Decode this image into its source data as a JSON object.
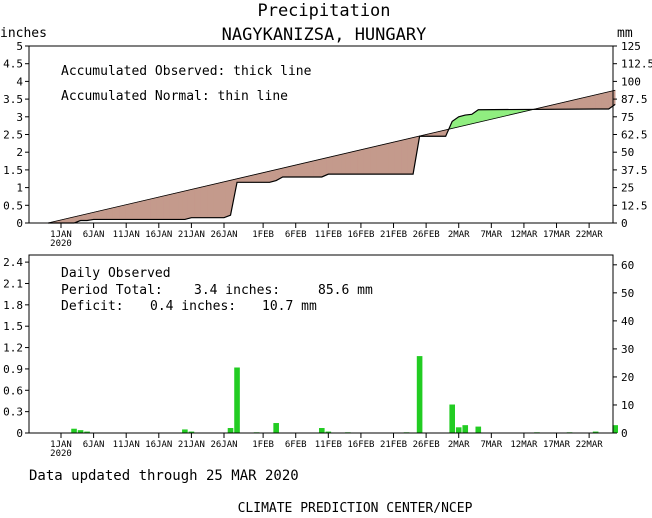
{
  "header": {
    "title": "Precipitation",
    "location": "NAGYKANIZSA, HUNGARY",
    "left_unit": "inches",
    "right_unit": "mm"
  },
  "top_panel": {
    "legend": [
      "Accumulated Observed: thick line",
      "Accumulated Normal: thin line"
    ]
  },
  "bottom_panel": {
    "title": "Daily Observed",
    "period_total_label": "Period Total:",
    "period_total_in": "3.4 inches:",
    "period_total_mm": "85.6 mm",
    "deficit_label": "Deficit:",
    "deficit_in": "0.4 inches:",
    "deficit_mm": "10.7 mm"
  },
  "footer": {
    "updated": "Data updated through 25 MAR 2020",
    "credit": "CLIMATE PREDICTION CENTER/NCEP"
  },
  "colors": {
    "deficit_fill": "#c49a8c",
    "surplus_fill": "#90ee80",
    "bar": "#22cc22"
  },
  "chart_data": [
    {
      "type": "area",
      "title": "Precipitation",
      "ylabel": "inches",
      "y2label": "mm",
      "x_axis": "days since 1 JAN 2020 (day 0 = 1 JAN 2020)",
      "xlim": [
        0,
        85
      ],
      "ylim": [
        0,
        5
      ],
      "y_ticks": [
        "0",
        "0.5",
        "1",
        "1.5",
        "2",
        "2.5",
        "3",
        "3.5",
        "4",
        "4.5",
        "5"
      ],
      "y2_ticks": [
        "0",
        "12.5",
        "25",
        "37.5",
        "50",
        "62.5",
        "75",
        "87.5",
        "100",
        "112.5",
        "125"
      ],
      "x_ticks": [
        {
          "day": 0,
          "label": "1JAN",
          "sub": "2020"
        },
        {
          "day": 5,
          "label": "6JAN"
        },
        {
          "day": 10,
          "label": "11JAN"
        },
        {
          "day": 15,
          "label": "16JAN"
        },
        {
          "day": 20,
          "label": "21JAN"
        },
        {
          "day": 25,
          "label": "26JAN"
        },
        {
          "day": 31,
          "label": "1FEB"
        },
        {
          "day": 36,
          "label": "6FEB"
        },
        {
          "day": 41,
          "label": "11FEB"
        },
        {
          "day": 46,
          "label": "16FEB"
        },
        {
          "day": 51,
          "label": "21FEB"
        },
        {
          "day": 56,
          "label": "26FEB"
        },
        {
          "day": 61,
          "label": "2MAR"
        },
        {
          "day": 66,
          "label": "7MAR"
        },
        {
          "day": 71,
          "label": "12MAR"
        },
        {
          "day": 76,
          "label": "17MAR"
        },
        {
          "day": 81,
          "label": "22MAR"
        }
      ],
      "series": [
        {
          "name": "Accumulated Normal",
          "style": "thin",
          "points": [
            [
              -2,
              0
            ],
            [
              85,
              3.75
            ]
          ]
        },
        {
          "name": "Accumulated Observed",
          "style": "thick",
          "points": [
            [
              -2,
              0
            ],
            [
              2,
              0
            ],
            [
              3,
              0.07
            ],
            [
              4,
              0.07
            ],
            [
              5,
              0.1
            ],
            [
              19,
              0.1
            ],
            [
              20,
              0.15
            ],
            [
              25,
              0.15
            ],
            [
              26,
              0.22
            ],
            [
              27,
              1.15
            ],
            [
              28,
              1.15
            ],
            [
              32,
              1.15
            ],
            [
              33,
              1.2
            ],
            [
              34,
              1.3
            ],
            [
              40,
              1.3
            ],
            [
              41,
              1.38
            ],
            [
              54,
              1.38
            ],
            [
              55,
              2.45
            ],
            [
              59,
              2.45
            ],
            [
              60,
              2.87
            ],
            [
              61,
              3.0
            ],
            [
              62,
              3.05
            ],
            [
              63,
              3.07
            ],
            [
              64,
              3.2
            ],
            [
              82,
              3.22
            ],
            [
              84,
              3.22
            ],
            [
              85,
              3.35
            ]
          ]
        }
      ]
    },
    {
      "type": "bar",
      "title": "Daily Observed",
      "x_axis": "days since 1 JAN 2020 (day 0 = 1 JAN 2020)",
      "xlim": [
        0,
        85
      ],
      "ylim": [
        0,
        2.5
      ],
      "y_ticks": [
        "0",
        "0.3",
        "0.6",
        "0.9",
        "1.2",
        "1.5",
        "1.8",
        "2.1",
        "2.4"
      ],
      "y2_ticks": [
        "0",
        "10",
        "20",
        "30",
        "40",
        "50",
        "60"
      ],
      "bars": [
        {
          "day": 2,
          "value": 0.06
        },
        {
          "day": 3,
          "value": 0.04
        },
        {
          "day": 4,
          "value": 0.02
        },
        {
          "day": 19,
          "value": 0.05
        },
        {
          "day": 20,
          "value": 0.02
        },
        {
          "day": 26,
          "value": 0.07
        },
        {
          "day": 27,
          "value": 0.92
        },
        {
          "day": 30,
          "value": 0.01
        },
        {
          "day": 33,
          "value": 0.14
        },
        {
          "day": 40,
          "value": 0.07
        },
        {
          "day": 41,
          "value": 0.02
        },
        {
          "day": 44,
          "value": 0.01
        },
        {
          "day": 53,
          "value": 0.01
        },
        {
          "day": 55,
          "value": 1.08
        },
        {
          "day": 60,
          "value": 0.4
        },
        {
          "day": 61,
          "value": 0.08
        },
        {
          "day": 62,
          "value": 0.11
        },
        {
          "day": 64,
          "value": 0.09
        },
        {
          "day": 73,
          "value": 0.01
        },
        {
          "day": 78,
          "value": 0.01
        },
        {
          "day": 82,
          "value": 0.02
        },
        {
          "day": 85,
          "value": 0.11
        }
      ]
    }
  ]
}
